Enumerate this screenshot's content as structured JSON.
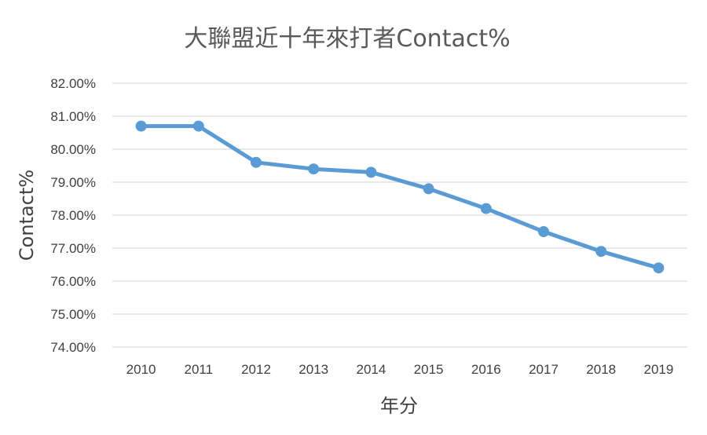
{
  "chart_data": {
    "type": "line",
    "title": "大聯盟近十年來打者Contact%",
    "xlabel": "年分",
    "ylabel": "Contact%",
    "categories": [
      "2010",
      "2011",
      "2012",
      "2013",
      "2014",
      "2015",
      "2016",
      "2017",
      "2018",
      "2019"
    ],
    "series": [
      {
        "values": [
          80.7,
          80.7,
          79.6,
          79.4,
          79.3,
          78.8,
          78.2,
          77.5,
          76.9,
          76.4
        ]
      }
    ],
    "ylim": [
      74,
      82
    ],
    "y_ticks": [
      "74.00%",
      "75.00%",
      "76.00%",
      "77.00%",
      "78.00%",
      "79.00%",
      "80.00%",
      "81.00%",
      "82.00%"
    ],
    "grid": true,
    "legend": "none",
    "line_color": "#5b9bd5",
    "grid_color": "#d9d9d9"
  }
}
